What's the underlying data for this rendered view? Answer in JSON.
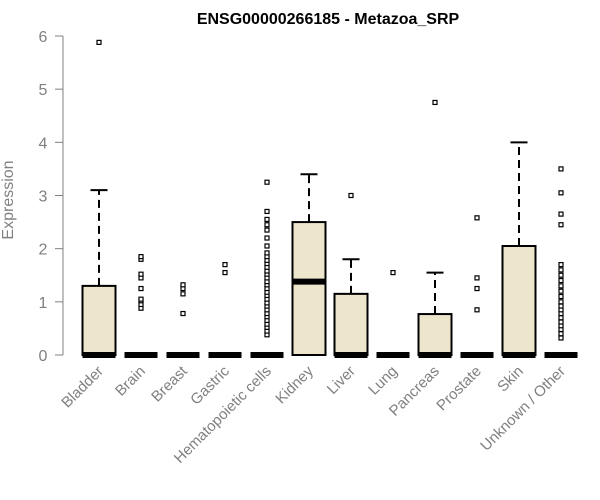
{
  "chart_data": {
    "type": "box",
    "title": "ENSG00000266185 - Metazoa_SRP",
    "ylabel": "Expression",
    "xlabel": "",
    "ylim": [
      0,
      6
    ],
    "yticks": [
      0,
      1,
      2,
      3,
      4,
      5,
      6
    ],
    "grid": false,
    "box_fill": "#ede6cc",
    "categories": [
      "Bladder",
      "Brain",
      "Breast",
      "Gastric",
      "Hematopoietic cells",
      "Kidney",
      "Liver",
      "Lung",
      "Pancreas",
      "Prostate",
      "Skin",
      "Unknown / Other"
    ],
    "boxes": [
      {
        "q1": 0,
        "median": 0,
        "q3": 1.3,
        "whisker_high": 3.1,
        "outliers": [
          5.88
        ]
      },
      {
        "q1": 0,
        "median": 0,
        "q3": 0,
        "whisker_high": 0,
        "outliers": [
          0.88,
          0.95,
          1.02,
          1.05,
          1.25,
          1.45,
          1.52,
          1.8,
          1.85
        ]
      },
      {
        "q1": 0,
        "median": 0,
        "q3": 0,
        "whisker_high": 0,
        "outliers": [
          0.78,
          1.15,
          1.25,
          1.32
        ]
      },
      {
        "q1": 0,
        "median": 0,
        "q3": 0,
        "whisker_high": 0,
        "outliers": [
          1.55,
          1.7
        ]
      },
      {
        "q1": 0,
        "median": 0,
        "q3": 0,
        "whisker_high": 0,
        "outliers": [
          0.38,
          0.45,
          0.52,
          0.58,
          0.65,
          0.72,
          0.78,
          0.85,
          0.92,
          0.98,
          1.05,
          1.12,
          1.18,
          1.25,
          1.32,
          1.38,
          1.45,
          1.52,
          1.58,
          1.65,
          1.72,
          1.78,
          1.85,
          1.92,
          2.05,
          2.2,
          2.35,
          2.45,
          2.55,
          2.7,
          3.25
        ]
      },
      {
        "q1": 0,
        "median": 1.38,
        "q3": 2.5,
        "whisker_high": 3.4,
        "outliers": []
      },
      {
        "q1": 0,
        "median": 0,
        "q3": 1.15,
        "whisker_high": 1.8,
        "outliers": [
          3.0
        ]
      },
      {
        "q1": 0,
        "median": 0,
        "q3": 0,
        "whisker_high": 0,
        "outliers": [
          1.55
        ]
      },
      {
        "q1": 0,
        "median": 0,
        "q3": 0.77,
        "whisker_high": 1.55,
        "outliers": [
          4.75
        ]
      },
      {
        "q1": 0,
        "median": 0,
        "q3": 0,
        "whisker_high": 0,
        "outliers": [
          0.85,
          1.25,
          1.45,
          2.58
        ]
      },
      {
        "q1": 0,
        "median": 0,
        "q3": 2.05,
        "whisker_high": 4.0,
        "outliers": []
      },
      {
        "q1": 0,
        "median": 0,
        "q3": 0,
        "whisker_high": 0,
        "outliers": [
          0.32,
          0.4,
          0.48,
          0.55,
          0.62,
          0.7,
          0.78,
          0.85,
          0.92,
          1.0,
          1.1,
          1.2,
          1.3,
          1.4,
          1.5,
          1.6,
          1.7,
          2.45,
          2.65,
          3.05,
          3.5
        ]
      }
    ]
  }
}
